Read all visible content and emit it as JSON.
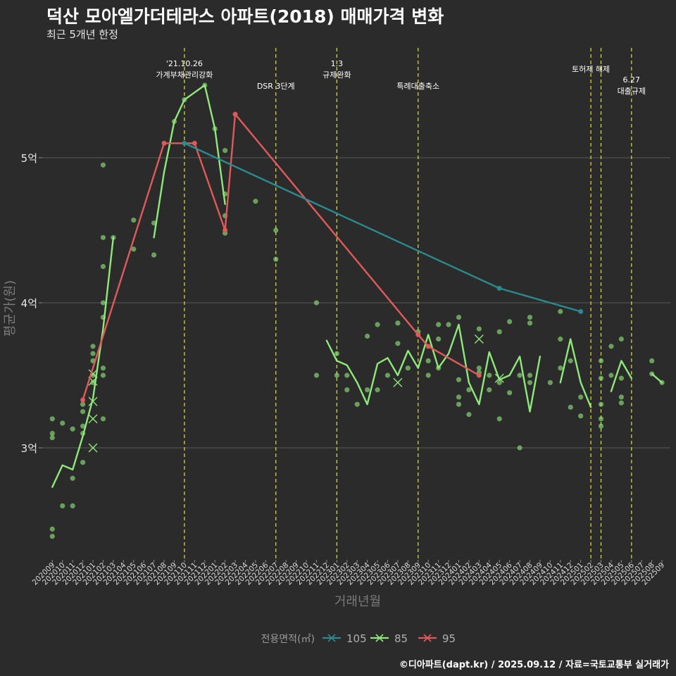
{
  "title": "덕산 모아엘가더테라스 아파트(2018) 매매가격 변화",
  "subtitle": "최근 5개년 한정",
  "credit": "©디아파트(dapt.kr) / 2025.09.12 / 자료=국토교통부 실거래가",
  "colors": {
    "s105": "#2a8a8e",
    "s85": "#8fe87a",
    "s95": "#e05a5a",
    "background": "#2b2b2b",
    "grid": "#5a5a5a",
    "vline": "#e3e32a"
  },
  "chart_data": {
    "type": "line",
    "xlabel": "거래년월",
    "ylabel": "평균가(원)",
    "ylim": [
      2.25,
      5.85
    ],
    "y_ticks": [
      {
        "value": 3,
        "label": "3억"
      },
      {
        "value": 4,
        "label": "4억"
      },
      {
        "value": 5,
        "label": "5억"
      }
    ],
    "x_categories": [
      "202009",
      "202010",
      "202011",
      "202012",
      "202101",
      "202102",
      "202103",
      "202104",
      "202105",
      "202106",
      "202107",
      "202108",
      "202109",
      "202110",
      "202111",
      "202112",
      "202201",
      "202202",
      "202203",
      "202204",
      "202205",
      "202206",
      "202207",
      "202208",
      "202209",
      "202210",
      "202211",
      "202212",
      "202301",
      "202302",
      "202303",
      "202304",
      "202305",
      "202306",
      "202307",
      "202308",
      "202309",
      "202310",
      "202311",
      "202312",
      "202401",
      "202402",
      "202403",
      "202404",
      "202405",
      "202406",
      "202407",
      "202408",
      "202409",
      "202410",
      "202411",
      "202412",
      "202501",
      "202502",
      "202503",
      "202504",
      "202505",
      "202506",
      "202507",
      "202508",
      "202509"
    ],
    "legend": {
      "title": "전용면적(㎡)",
      "position": "bottom",
      "items": [
        {
          "label": "105",
          "color_key": "s105"
        },
        {
          "label": "85",
          "color_key": "s85"
        },
        {
          "label": "95",
          "color_key": "s95"
        }
      ]
    },
    "annotations": [
      {
        "x": "202110",
        "lines": [
          "'21.10.26",
          "가계부채관리강화"
        ]
      },
      {
        "x": "202207",
        "lines": [
          "DSR 3단계"
        ]
      },
      {
        "x": "202301",
        "lines": [
          "1.3",
          "규제완화"
        ]
      },
      {
        "x": "202309",
        "lines": [
          "특례대출축소"
        ]
      },
      {
        "x": "202502",
        "lines": [
          "토허제 해제"
        ]
      },
      {
        "x": "202503",
        "lines": []
      },
      {
        "x": "202506",
        "lines": [
          "6.27",
          "대출규제"
        ]
      }
    ],
    "series": [
      {
        "name": "105",
        "color_key": "s105",
        "line": [
          {
            "x": "202110",
            "y": 5.1
          },
          {
            "x": "202405",
            "y": 4.1
          },
          {
            "x": "202501",
            "y": 3.94
          }
        ],
        "points": [
          {
            "x": "202110",
            "y": 5.1
          },
          {
            "x": "202405",
            "y": 4.1
          },
          {
            "x": "202501",
            "y": 3.94
          }
        ],
        "crosses": []
      },
      {
        "name": "85",
        "color_key": "s85",
        "line": [
          [
            {
              "x": "202009",
              "y": 2.73
            },
            {
              "x": "202010",
              "y": 2.88
            },
            {
              "x": "202011",
              "y": 2.85
            },
            {
              "x": "202012",
              "y": 3.08
            },
            {
              "x": "202101",
              "y": 3.34
            },
            {
              "x": "202102",
              "y": 3.82
            },
            {
              "x": "202103",
              "y": 4.45
            }
          ],
          [
            {
              "x": "202107",
              "y": 4.45
            },
            {
              "x": "202108",
              "y": 4.9
            },
            {
              "x": "202109",
              "y": 5.25
            },
            {
              "x": "202110",
              "y": 5.4
            },
            {
              "x": "202111",
              "y": 5.45
            },
            {
              "x": "202112",
              "y": 5.5
            },
            {
              "x": "202201",
              "y": 5.2
            },
            {
              "x": "202202",
              "y": 4.68
            }
          ],
          [
            {
              "x": "202212",
              "y": 3.74
            },
            {
              "x": "202301",
              "y": 3.6
            },
            {
              "x": "202302",
              "y": 3.57
            },
            {
              "x": "202303",
              "y": 3.45
            },
            {
              "x": "202304",
              "y": 3.3
            },
            {
              "x": "202305",
              "y": 3.58
            },
            {
              "x": "202306",
              "y": 3.62
            },
            {
              "x": "202307",
              "y": 3.5
            },
            {
              "x": "202308",
              "y": 3.67
            },
            {
              "x": "202309",
              "y": 3.55
            },
            {
              "x": "202310",
              "y": 3.78
            },
            {
              "x": "202311",
              "y": 3.55
            },
            {
              "x": "202312",
              "y": 3.65
            },
            {
              "x": "202401",
              "y": 3.85
            },
            {
              "x": "202402",
              "y": 3.45
            },
            {
              "x": "202403",
              "y": 3.3
            },
            {
              "x": "202404",
              "y": 3.66
            },
            {
              "x": "202405",
              "y": 3.47
            },
            {
              "x": "202406",
              "y": 3.5
            },
            {
              "x": "202407",
              "y": 3.63
            },
            {
              "x": "202408",
              "y": 3.25
            },
            {
              "x": "202409",
              "y": 3.63
            }
          ],
          [
            {
              "x": "202411",
              "y": 3.45
            },
            {
              "x": "202412",
              "y": 3.75
            },
            {
              "x": "202501",
              "y": 3.45
            },
            {
              "x": "202502",
              "y": 3.28
            }
          ],
          [
            {
              "x": "202504",
              "y": 3.39
            },
            {
              "x": "202505",
              "y": 3.6
            },
            {
              "x": "202506",
              "y": 3.48
            }
          ],
          [
            {
              "x": "202508",
              "y": 3.51
            },
            {
              "x": "202509",
              "y": 3.45
            }
          ]
        ],
        "points": [
          {
            "x": "202009",
            "y": 3.2
          },
          {
            "x": "202009",
            "y": 3.1
          },
          {
            "x": "202009",
            "y": 3.07
          },
          {
            "x": "202009",
            "y": 2.44
          },
          {
            "x": "202009",
            "y": 2.39
          },
          {
            "x": "202010",
            "y": 3.17
          },
          {
            "x": "202010",
            "y": 2.6
          },
          {
            "x": "202011",
            "y": 3.13
          },
          {
            "x": "202011",
            "y": 2.79
          },
          {
            "x": "202011",
            "y": 2.6
          },
          {
            "x": "202012",
            "y": 3.3
          },
          {
            "x": "202012",
            "y": 3.25
          },
          {
            "x": "202012",
            "y": 3.15
          },
          {
            "x": "202012",
            "y": 3.1
          },
          {
            "x": "202012",
            "y": 2.9
          },
          {
            "x": "202101",
            "y": 3.7
          },
          {
            "x": "202101",
            "y": 3.65
          },
          {
            "x": "202101",
            "y": 3.6
          },
          {
            "x": "202101",
            "y": 3.5
          },
          {
            "x": "202101",
            "y": 3.45
          },
          {
            "x": "202102",
            "y": 4.95
          },
          {
            "x": "202102",
            "y": 4.45
          },
          {
            "x": "202102",
            "y": 4.25
          },
          {
            "x": "202102",
            "y": 4.0
          },
          {
            "x": "202102",
            "y": 3.9
          },
          {
            "x": "202102",
            "y": 3.55
          },
          {
            "x": "202102",
            "y": 3.5
          },
          {
            "x": "202102",
            "y": 3.2
          },
          {
            "x": "202103",
            "y": 4.45
          },
          {
            "x": "202105",
            "y": 4.57
          },
          {
            "x": "202105",
            "y": 4.37
          },
          {
            "x": "202107",
            "y": 4.55
          },
          {
            "x": "202107",
            "y": 4.33
          },
          {
            "x": "202109",
            "y": 5.25
          },
          {
            "x": "202110",
            "y": 5.4
          },
          {
            "x": "202112",
            "y": 5.5
          },
          {
            "x": "202201",
            "y": 5.2
          },
          {
            "x": "202202",
            "y": 5.05
          },
          {
            "x": "202202",
            "y": 4.75
          },
          {
            "x": "202202",
            "y": 4.6
          },
          {
            "x": "202202",
            "y": 4.48
          },
          {
            "x": "202205",
            "y": 4.7
          },
          {
            "x": "202207",
            "y": 4.5
          },
          {
            "x": "202207",
            "y": 4.3
          },
          {
            "x": "202211",
            "y": 4.0
          },
          {
            "x": "202211",
            "y": 3.5
          },
          {
            "x": "202301",
            "y": 3.65
          },
          {
            "x": "202301",
            "y": 3.5
          },
          {
            "x": "202302",
            "y": 3.5
          },
          {
            "x": "202302",
            "y": 3.4
          },
          {
            "x": "202303",
            "y": 3.3
          },
          {
            "x": "202304",
            "y": 3.77
          },
          {
            "x": "202304",
            "y": 3.4
          },
          {
            "x": "202305",
            "y": 3.85
          },
          {
            "x": "202305",
            "y": 3.4
          },
          {
            "x": "202306",
            "y": 3.5
          },
          {
            "x": "202307",
            "y": 3.86
          },
          {
            "x": "202307",
            "y": 3.72
          },
          {
            "x": "202308",
            "y": 3.55
          },
          {
            "x": "202309",
            "y": 3.8
          },
          {
            "x": "202310",
            "y": 3.6
          },
          {
            "x": "202310",
            "y": 3.5
          },
          {
            "x": "202311",
            "y": 3.85
          },
          {
            "x": "202311",
            "y": 3.75
          },
          {
            "x": "202311",
            "y": 3.55
          },
          {
            "x": "202312",
            "y": 3.85
          },
          {
            "x": "202401",
            "y": 3.9
          },
          {
            "x": "202401",
            "y": 3.47
          },
          {
            "x": "202401",
            "y": 3.35
          },
          {
            "x": "202401",
            "y": 3.3
          },
          {
            "x": "202402",
            "y": 3.4
          },
          {
            "x": "202402",
            "y": 3.23
          },
          {
            "x": "202403",
            "y": 3.82
          },
          {
            "x": "202403",
            "y": 3.55
          },
          {
            "x": "202403",
            "y": 3.52
          },
          {
            "x": "202404",
            "y": 3.5
          },
          {
            "x": "202404",
            "y": 3.4
          },
          {
            "x": "202405",
            "y": 3.8
          },
          {
            "x": "202405",
            "y": 3.45
          },
          {
            "x": "202405",
            "y": 3.2
          },
          {
            "x": "202406",
            "y": 3.87
          },
          {
            "x": "202406",
            "y": 3.38
          },
          {
            "x": "202407",
            "y": 3.5
          },
          {
            "x": "202407",
            "y": 3.0
          },
          {
            "x": "202408",
            "y": 3.9
          },
          {
            "x": "202408",
            "y": 3.86
          },
          {
            "x": "202408",
            "y": 3.5
          },
          {
            "x": "202408",
            "y": 3.45
          },
          {
            "x": "202410",
            "y": 3.45
          },
          {
            "x": "202411",
            "y": 3.94
          },
          {
            "x": "202411",
            "y": 3.75
          },
          {
            "x": "202411",
            "y": 3.55
          },
          {
            "x": "202412",
            "y": 3.6
          },
          {
            "x": "202412",
            "y": 3.28
          },
          {
            "x": "202501",
            "y": 3.35
          },
          {
            "x": "202501",
            "y": 3.22
          },
          {
            "x": "202503",
            "y": 3.6
          },
          {
            "x": "202503",
            "y": 3.48
          },
          {
            "x": "202503",
            "y": 3.3
          },
          {
            "x": "202503",
            "y": 3.2
          },
          {
            "x": "202503",
            "y": 3.15
          },
          {
            "x": "202504",
            "y": 3.7
          },
          {
            "x": "202504",
            "y": 3.5
          },
          {
            "x": "202505",
            "y": 3.75
          },
          {
            "x": "202505",
            "y": 3.48
          },
          {
            "x": "202505",
            "y": 3.35
          },
          {
            "x": "202505",
            "y": 3.31
          },
          {
            "x": "202508",
            "y": 3.6
          },
          {
            "x": "202508",
            "y": 3.51
          },
          {
            "x": "202509",
            "y": 3.45
          }
        ],
        "crosses": [
          {
            "x": "202101",
            "y": 3.51
          },
          {
            "x": "202101",
            "y": 3.46
          },
          {
            "x": "202101",
            "y": 3.32
          },
          {
            "x": "202101",
            "y": 3.2
          },
          {
            "x": "202101",
            "y": 3.0
          },
          {
            "x": "202307",
            "y": 3.45
          },
          {
            "x": "202403",
            "y": 3.75
          },
          {
            "x": "202405",
            "y": 3.48
          }
        ]
      },
      {
        "name": "95",
        "color_key": "s95",
        "line": [
          {
            "x": "202012",
            "y": 3.33
          },
          {
            "x": "202108",
            "y": 5.1
          },
          {
            "x": "202110",
            "y": 5.1
          },
          {
            "x": "202111",
            "y": 5.1
          },
          {
            "x": "202202",
            "y": 4.5
          },
          {
            "x": "202203",
            "y": 5.3
          },
          {
            "x": "202309",
            "y": 3.78
          },
          {
            "x": "202310",
            "y": 3.7
          },
          {
            "x": "202403",
            "y": 3.5
          }
        ],
        "points": [
          {
            "x": "202012",
            "y": 3.33
          },
          {
            "x": "202108",
            "y": 5.1
          },
          {
            "x": "202111",
            "y": 5.1
          },
          {
            "x": "202202",
            "y": 4.5
          },
          {
            "x": "202203",
            "y": 5.3
          },
          {
            "x": "202309",
            "y": 3.78
          },
          {
            "x": "202310",
            "y": 3.7
          },
          {
            "x": "202403",
            "y": 3.5
          }
        ],
        "crosses": []
      }
    ]
  }
}
